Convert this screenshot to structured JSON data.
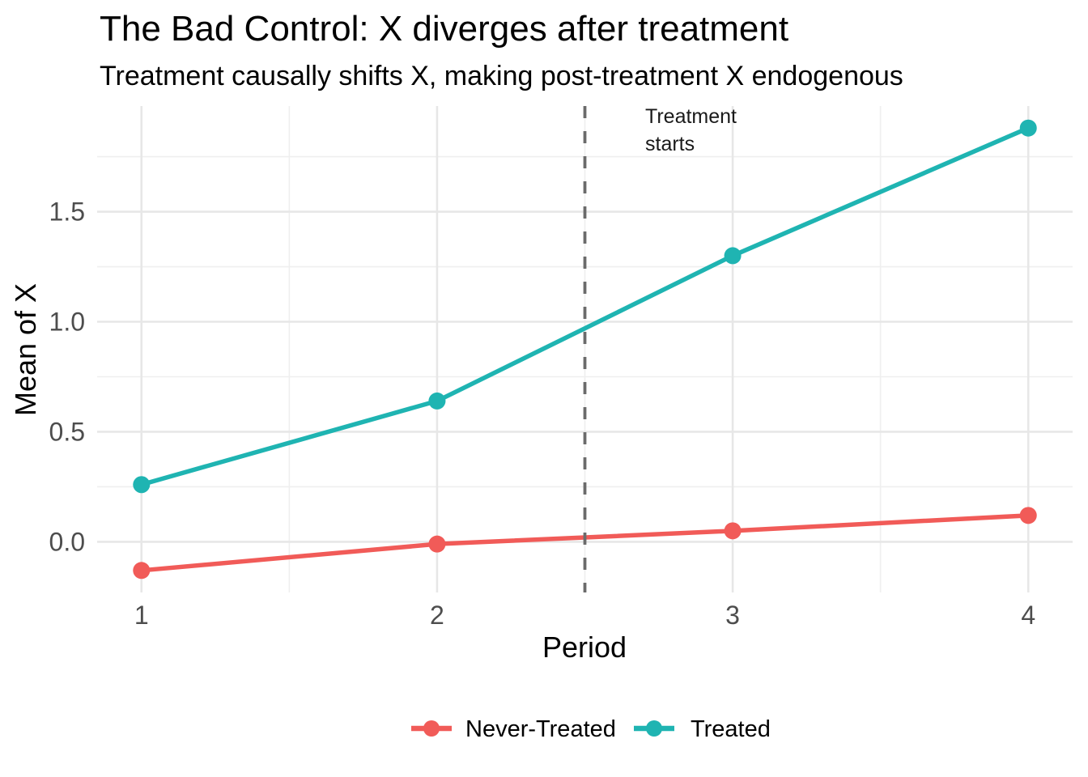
{
  "header": {
    "title": "The Bad Control: X diverges after treatment",
    "subtitle": "Treatment causally shifts X, making post-treatment X endogenous"
  },
  "annotation": {
    "line1": "Treatment",
    "line2": "starts"
  },
  "axes": {
    "xlabel": "Period",
    "ylabel": "Mean of X"
  },
  "legend": {
    "items": [
      {
        "label": "Never-Treated",
        "color": "#F15B58"
      },
      {
        "label": "Treated",
        "color": "#1FB4B2"
      }
    ]
  },
  "style": {
    "background": "#FFFFFF",
    "accent_red": "#F15B58",
    "accent_teal": "#1FB4B2",
    "grid_major": "#E7E7E7",
    "grid_minor": "#EFEFEF",
    "tick_text": "#4D4D4D",
    "text": "#000000",
    "vline_color": "#6B6B6B"
  },
  "chart_data": {
    "type": "line",
    "title": "The Bad Control: X diverges after treatment",
    "subtitle": "Treatment causally shifts X, making post-treatment X endogenous",
    "xlabel": "Period",
    "ylabel": "Mean of X",
    "x": [
      1,
      2,
      3,
      4
    ],
    "series": [
      {
        "name": "Never-Treated",
        "color": "#F15B58",
        "values": [
          -0.13,
          -0.01,
          0.05,
          0.12
        ]
      },
      {
        "name": "Treated",
        "color": "#1FB4B2",
        "values": [
          0.26,
          0.64,
          1.3,
          1.88
        ]
      }
    ],
    "xticks": [
      1,
      2,
      3,
      4
    ],
    "yticks": [
      0.0,
      0.5,
      1.0,
      1.5
    ],
    "x_minor": [
      1.5,
      2.5,
      3.5
    ],
    "y_minor": [
      0.25,
      0.75,
      1.25,
      1.75
    ],
    "xlim": [
      0.85,
      4.15
    ],
    "ylim": [
      -0.23,
      1.98
    ],
    "grid": "major+minor",
    "legend_position": "bottom",
    "vline": {
      "x": 2.5,
      "style": "dashed",
      "annotation": "Treatment starts"
    }
  }
}
